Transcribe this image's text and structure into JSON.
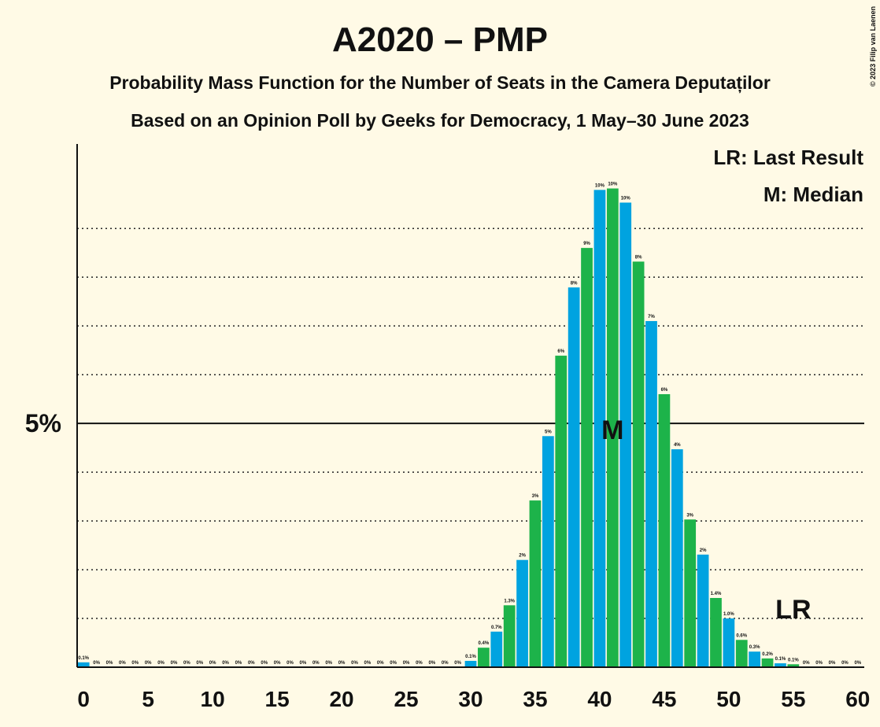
{
  "chart_data": {
    "type": "bar",
    "title": "A2020 – PMP",
    "subtitle": "Probability Mass Function for the Number of Seats in the Camera Deputaților",
    "subtitle2": "Based on an Opinion Poll by Geeks for Democracy, 1 May–30 June 2023",
    "copyright": "© 2023 Filip van Laenen",
    "legend": [
      "LR: Last Result",
      "M: Median"
    ],
    "x": [
      0,
      1,
      2,
      3,
      4,
      5,
      6,
      7,
      8,
      9,
      10,
      11,
      12,
      13,
      14,
      15,
      16,
      17,
      18,
      19,
      20,
      21,
      22,
      23,
      24,
      25,
      26,
      27,
      28,
      29,
      30,
      31,
      32,
      33,
      34,
      35,
      36,
      37,
      38,
      39,
      40,
      41,
      42,
      43,
      44,
      45,
      46,
      47,
      48,
      49,
      50,
      51,
      52,
      53,
      54,
      55,
      56,
      57,
      58,
      59,
      60
    ],
    "values": [
      0.1,
      0,
      0,
      0,
      0,
      0,
      0,
      0,
      0,
      0,
      0,
      0,
      0,
      0,
      0,
      0,
      0,
      0,
      0,
      0,
      0,
      0,
      0,
      0,
      0,
      0,
      0,
      0,
      0,
      0,
      0.13,
      0.4,
      0.73,
      1.27,
      2.2,
      3.42,
      4.74,
      6.39,
      7.79,
      8.6,
      9.79,
      9.82,
      9.53,
      8.32,
      7.1,
      5.6,
      4.47,
      3.03,
      2.31,
      1.42,
      1.0,
      0.56,
      0.32,
      0.18,
      0.08,
      0.06,
      0,
      0,
      0,
      0,
      0
    ],
    "value_labels": [
      "0.1%",
      "0%",
      "0%",
      "0%",
      "0%",
      "0%",
      "0%",
      "0%",
      "0%",
      "0%",
      "0%",
      "0%",
      "0%",
      "0%",
      "0%",
      "0%",
      "0%",
      "0%",
      "0%",
      "0%",
      "0%",
      "0%",
      "0%",
      "0%",
      "0%",
      "0%",
      "0%",
      "0%",
      "0%",
      "0%",
      "0.1%",
      "0.4%",
      "0.7%",
      "1.3%",
      "2%",
      "3%",
      "5%",
      "6%",
      "8%",
      "9%",
      "10%",
      "10%",
      "10%",
      "8%",
      "7%",
      "6%",
      "4%",
      "3%",
      "2%",
      "1.4%",
      "1.0%",
      "0.6%",
      "0.3%",
      "0.2%",
      "0.1%",
      "0.1%",
      "0%",
      "0%",
      "0%",
      "0%",
      "0%"
    ],
    "colors": [
      "#00a3e0",
      "#1db34a"
    ],
    "xlim": [
      -0.5,
      60.5
    ],
    "xticks": [
      0,
      5,
      10,
      15,
      20,
      25,
      30,
      35,
      40,
      45,
      50,
      55,
      60
    ],
    "ylim": [
      0,
      10.7
    ],
    "yticks": [
      {
        "value": 5,
        "label": "5%"
      }
    ],
    "gridlines": [
      1,
      2,
      3,
      4,
      6,
      7,
      8,
      9
    ],
    "annotations": [
      {
        "text": "M",
        "x": 41
      },
      {
        "text": "LR",
        "x": 55
      }
    ]
  }
}
